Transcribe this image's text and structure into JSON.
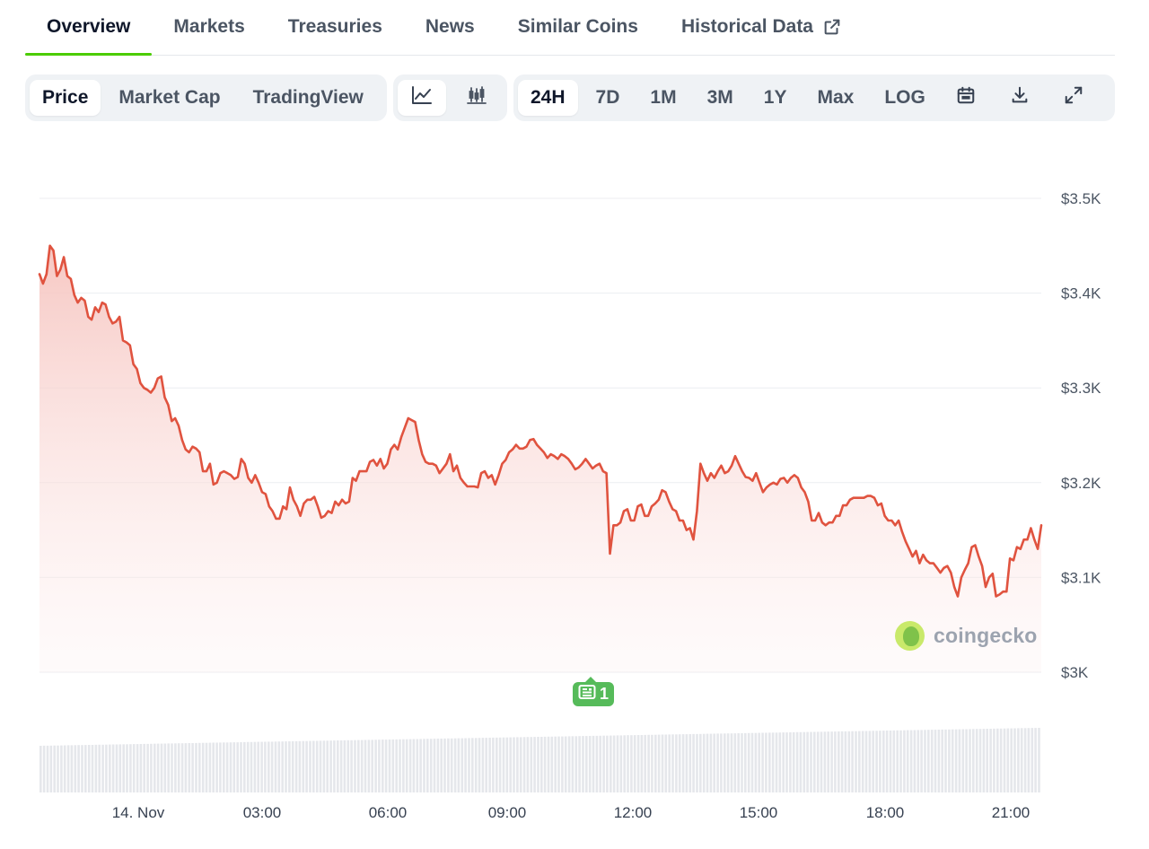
{
  "tabs": [
    {
      "label": "Overview",
      "active": true
    },
    {
      "label": "Markets"
    },
    {
      "label": "Treasuries"
    },
    {
      "label": "News"
    },
    {
      "label": "Similar Coins"
    },
    {
      "label": "Historical Data",
      "icon": "external-link-icon"
    }
  ],
  "chart_toolbar": {
    "view_modes": [
      {
        "label": "Price",
        "active": true
      },
      {
        "label": "Market Cap"
      },
      {
        "label": "TradingView"
      }
    ],
    "chart_types": [
      "line-chart-icon",
      "candlestick-icon"
    ],
    "ranges": [
      {
        "label": "24H",
        "active": true
      },
      {
        "label": "7D"
      },
      {
        "label": "1M"
      },
      {
        "label": "3M"
      },
      {
        "label": "1Y"
      },
      {
        "label": "Max"
      },
      {
        "label": "LOG"
      }
    ],
    "actions": [
      "calendar-icon",
      "download-icon",
      "fullscreen-icon"
    ]
  },
  "news_badge": {
    "count": "1",
    "icon": "newspaper-icon"
  },
  "watermark": {
    "text": "coingecko"
  },
  "colors": {
    "line": "#e0533f",
    "fill": "#f6c5c0",
    "accent": "#4bcc00",
    "news": "#56bb5a",
    "volume": "#e5e7eb"
  },
  "chart_data": {
    "type": "area",
    "x_axis": {
      "ticks": [
        "14. Nov",
        "03:00",
        "06:00",
        "09:00",
        "12:00",
        "15:00",
        "18:00",
        "21:00"
      ]
    },
    "y_axis": {
      "ticks": [
        "$3K",
        "$3.1K",
        "$3.2K",
        "$3.3K",
        "$3.4K",
        "$3.5K"
      ],
      "range": [
        3000,
        3500
      ],
      "position": "right"
    },
    "grid": true,
    "series": [
      {
        "values": [
          3420,
          3410,
          3420,
          3450,
          3445,
          3418,
          3425,
          3438,
          3418,
          3415,
          3398,
          3390,
          3395,
          3392,
          3375,
          3372,
          3385,
          3380,
          3390,
          3388,
          3375,
          3368,
          3370,
          3375,
          3350,
          3348,
          3345,
          3325,
          3320,
          3305,
          3300,
          3298,
          3295,
          3300,
          3310,
          3312,
          3290,
          3282,
          3265,
          3268,
          3260,
          3245,
          3235,
          3232,
          3238,
          3236,
          3232,
          3212,
          3212,
          3220,
          3198,
          3200,
          3210,
          3212,
          3210,
          3208,
          3204,
          3206,
          3225,
          3220,
          3205,
          3200,
          3208,
          3200,
          3190,
          3188,
          3175,
          3170,
          3162,
          3162,
          3175,
          3172,
          3195,
          3182,
          3175,
          3165,
          3178,
          3182,
          3182,
          3185,
          3175,
          3163,
          3165,
          3170,
          3168,
          3180,
          3176,
          3182,
          3178,
          3180,
          3205,
          3202,
          3212,
          3212,
          3212,
          3222,
          3224,
          3218,
          3225,
          3215,
          3220,
          3235,
          3240,
          3235,
          3248,
          3258,
          3268,
          3266,
          3264,
          3245,
          3230,
          3222,
          3220,
          3220,
          3218,
          3210,
          3215,
          3220,
          3230,
          3212,
          3218,
          3205,
          3200,
          3196,
          3196,
          3196,
          3195,
          3210,
          3212,
          3205,
          3208,
          3198,
          3208,
          3220,
          3224,
          3232,
          3235,
          3240,
          3236,
          3236,
          3238,
          3245,
          3246,
          3240,
          3236,
          3232,
          3226,
          3230,
          3228,
          3225,
          3230,
          3228,
          3225,
          3220,
          3214,
          3216,
          3220,
          3225,
          3220,
          3215,
          3218,
          3220,
          3212,
          3210,
          3125,
          3155,
          3155,
          3158,
          3170,
          3172,
          3160,
          3160,
          3175,
          3177,
          3165,
          3165,
          3175,
          3178,
          3182,
          3192,
          3190,
          3180,
          3172,
          3170,
          3160,
          3160,
          3150,
          3152,
          3140,
          3170,
          3220,
          3210,
          3202,
          3210,
          3205,
          3212,
          3218,
          3210,
          3212,
          3218,
          3228,
          3220,
          3212,
          3206,
          3205,
          3202,
          3210,
          3200,
          3190,
          3195,
          3198,
          3200,
          3198,
          3204,
          3205,
          3200,
          3205,
          3208,
          3205,
          3195,
          3190,
          3180,
          3160,
          3160,
          3168,
          3158,
          3155,
          3158,
          3158,
          3165,
          3165,
          3176,
          3176,
          3182,
          3184,
          3184,
          3184,
          3184,
          3186,
          3186,
          3184,
          3176,
          3178,
          3165,
          3160,
          3160,
          3155,
          3160,
          3148,
          3138,
          3130,
          3122,
          3128,
          3115,
          3124,
          3118,
          3115,
          3115,
          3110,
          3105,
          3110,
          3112,
          3105,
          3090,
          3080,
          3100,
          3108,
          3115,
          3132,
          3134,
          3122,
          3112,
          3090,
          3100,
          3104,
          3080,
          3082,
          3085,
          3085,
          3120,
          3118,
          3132,
          3130,
          3140,
          3140,
          3152,
          3140,
          3130,
          3155
        ]
      }
    ]
  }
}
